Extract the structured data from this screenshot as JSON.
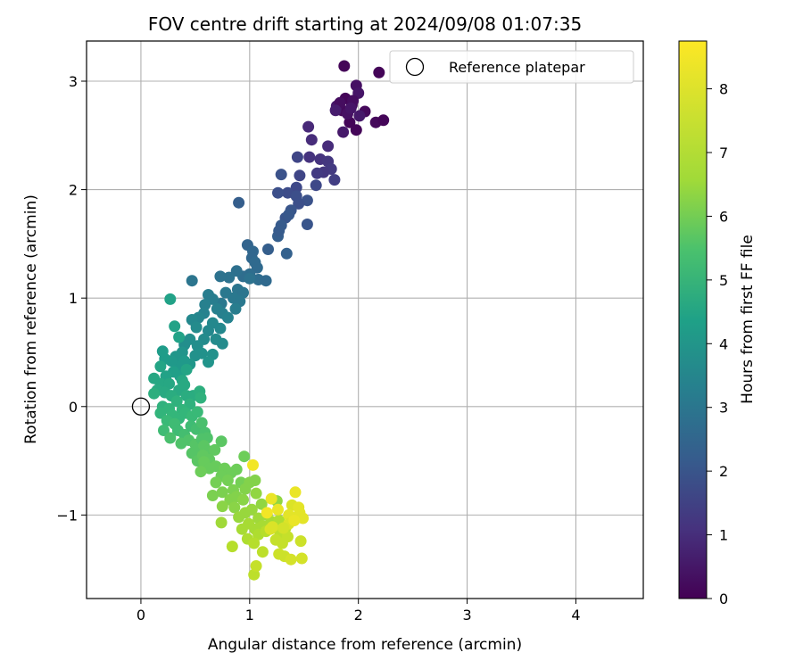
{
  "chart_data": {
    "type": "scatter",
    "title": "FOV centre drift starting at 2024/09/08 01:07:35",
    "xlabel": "Angular distance from reference (arcmin)",
    "ylabel": "Rotation from reference (arcmin)",
    "xlim": [
      -0.5,
      4.62
    ],
    "ylim": [
      -1.77,
      3.37
    ],
    "xticks": [
      0,
      1,
      2,
      3,
      4
    ],
    "yticks": [
      -1,
      0,
      1,
      2,
      3
    ],
    "xtick_labels": [
      "0",
      "1",
      "2",
      "3",
      "4"
    ],
    "ytick_labels": [
      "−1",
      "0",
      "1",
      "2",
      "3"
    ],
    "grid": true,
    "legend": {
      "placement": "top-right",
      "entries": [
        "Reference platepar"
      ]
    },
    "reference_point": {
      "x": 0,
      "y": 0,
      "label": "Reference platepar"
    },
    "colorbar": {
      "label": "Hours from first FF file",
      "min": 0,
      "max": 8.75,
      "ticks": [
        0,
        1,
        2,
        3,
        4,
        5,
        6,
        7,
        8
      ],
      "tick_labels": [
        "0",
        "1",
        "2",
        "3",
        "4",
        "5",
        "6",
        "7",
        "8"
      ],
      "colormap": "viridis"
    },
    "points": [
      [
        1.87,
        3.14,
        0.1
      ],
      [
        2.19,
        3.08,
        0.1
      ],
      [
        1.92,
        2.62,
        0.1
      ],
      [
        1.98,
        2.55,
        0.1
      ],
      [
        2.06,
        2.72,
        0.2
      ],
      [
        2.16,
        2.62,
        0.2
      ],
      [
        2.23,
        2.64,
        0.1
      ],
      [
        1.88,
        2.84,
        0.1
      ],
      [
        1.94,
        2.78,
        0.2
      ],
      [
        1.85,
        2.73,
        0.2
      ],
      [
        1.98,
        2.96,
        0.4
      ],
      [
        2.0,
        2.89,
        0.5
      ],
      [
        1.8,
        2.77,
        0.6
      ],
      [
        1.9,
        2.7,
        0.4
      ],
      [
        1.83,
        2.8,
        0.3
      ],
      [
        1.95,
        2.82,
        0.3
      ],
      [
        1.86,
        2.53,
        0.6
      ],
      [
        1.93,
        2.75,
        0.5
      ],
      [
        1.79,
        2.73,
        0.7
      ],
      [
        2.01,
        2.68,
        0.6
      ],
      [
        1.54,
        2.58,
        1.0
      ],
      [
        1.57,
        2.46,
        1.1
      ],
      [
        1.72,
        2.4,
        1.1
      ],
      [
        1.65,
        2.28,
        1.3
      ],
      [
        1.55,
        2.3,
        1.3
      ],
      [
        1.72,
        2.26,
        1.4
      ],
      [
        1.75,
        2.19,
        1.5
      ],
      [
        1.68,
        2.16,
        1.4
      ],
      [
        1.62,
        2.15,
        1.5
      ],
      [
        1.78,
        2.09,
        1.6
      ],
      [
        1.44,
        2.3,
        1.8
      ],
      [
        1.46,
        2.13,
        1.8
      ],
      [
        1.61,
        2.04,
        1.9
      ],
      [
        1.43,
        2.02,
        1.9
      ],
      [
        1.35,
        1.97,
        2.0
      ],
      [
        1.26,
        1.97,
        2.1
      ],
      [
        1.43,
        1.94,
        2.1
      ],
      [
        1.53,
        1.9,
        2.2
      ],
      [
        1.45,
        1.87,
        2.1
      ],
      [
        1.29,
        2.14,
        2.2
      ],
      [
        1.38,
        1.81,
        2.3
      ],
      [
        1.33,
        1.74,
        2.3
      ],
      [
        1.36,
        1.77,
        2.4
      ],
      [
        1.29,
        1.67,
        2.5
      ],
      [
        1.26,
        1.57,
        2.6
      ],
      [
        1.17,
        1.45,
        2.6
      ],
      [
        1.53,
        1.68,
        2.3
      ],
      [
        1.34,
        1.41,
        2.7
      ],
      [
        0.9,
        1.88,
        2.6
      ],
      [
        1.27,
        1.62,
        2.5
      ],
      [
        0.98,
        1.49,
        2.8
      ],
      [
        1.03,
        1.43,
        2.9
      ],
      [
        1.02,
        1.37,
        2.9
      ],
      [
        1.05,
        1.33,
        3.0
      ],
      [
        1.07,
        1.28,
        3.0
      ],
      [
        1.0,
        1.22,
        3.1
      ],
      [
        0.94,
        1.2,
        3.1
      ],
      [
        1.08,
        1.17,
        3.1
      ],
      [
        1.15,
        1.16,
        3.0
      ],
      [
        0.88,
        1.25,
        3.2
      ],
      [
        0.81,
        1.19,
        3.3
      ],
      [
        1.0,
        1.18,
        3.3
      ],
      [
        0.89,
        1.08,
        3.4
      ],
      [
        0.94,
        1.05,
        3.4
      ],
      [
        0.78,
        1.05,
        3.5
      ],
      [
        0.85,
        1.0,
        3.5
      ],
      [
        0.74,
        0.95,
        3.5
      ],
      [
        0.91,
        0.97,
        3.5
      ],
      [
        0.47,
        1.16,
        3.4
      ],
      [
        0.73,
        1.2,
        3.3
      ],
      [
        0.62,
        1.03,
        3.7
      ],
      [
        0.66,
        0.99,
        3.7
      ],
      [
        0.59,
        0.94,
        3.8
      ],
      [
        0.7,
        0.9,
        3.8
      ],
      [
        0.75,
        0.86,
        3.8
      ],
      [
        0.87,
        0.9,
        3.7
      ],
      [
        0.8,
        0.82,
        3.9
      ],
      [
        0.58,
        0.86,
        3.9
      ],
      [
        0.53,
        0.82,
        4.0
      ],
      [
        0.66,
        0.77,
        4.1
      ],
      [
        0.47,
        0.8,
        4.1
      ],
      [
        0.62,
        0.7,
        4.1
      ],
      [
        0.73,
        0.72,
        4.1
      ],
      [
        0.51,
        0.73,
        4.2
      ],
      [
        0.58,
        0.62,
        4.2
      ],
      [
        0.69,
        0.62,
        4.2
      ],
      [
        0.75,
        0.58,
        4.2
      ],
      [
        0.45,
        0.62,
        4.3
      ],
      [
        0.4,
        0.57,
        4.3
      ],
      [
        0.52,
        0.56,
        4.3
      ],
      [
        0.56,
        0.49,
        4.4
      ],
      [
        0.66,
        0.48,
        4.4
      ],
      [
        0.5,
        0.47,
        4.4
      ],
      [
        0.62,
        0.41,
        4.5
      ],
      [
        0.38,
        0.5,
        4.5
      ],
      [
        0.32,
        0.46,
        4.6
      ],
      [
        0.45,
        0.39,
        4.6
      ],
      [
        0.4,
        0.42,
        4.7
      ],
      [
        0.34,
        0.37,
        4.7
      ],
      [
        0.28,
        0.42,
        4.7
      ],
      [
        0.22,
        0.44,
        4.8
      ],
      [
        0.2,
        0.51,
        4.8
      ],
      [
        0.3,
        0.32,
        4.9
      ],
      [
        0.36,
        0.28,
        4.9
      ],
      [
        0.23,
        0.28,
        5.0
      ],
      [
        0.27,
        0.99,
        5.0
      ],
      [
        0.31,
        0.74,
        5.0
      ],
      [
        0.35,
        0.64,
        5.0
      ],
      [
        0.18,
        0.37,
        5.1
      ],
      [
        0.42,
        0.34,
        5.1
      ],
      [
        0.12,
        0.26,
        5.2
      ],
      [
        0.18,
        0.21,
        5.2
      ],
      [
        0.26,
        0.21,
        5.2
      ],
      [
        0.38,
        0.24,
        5.2
      ],
      [
        0.15,
        0.15,
        5.3
      ],
      [
        0.22,
        0.13,
        5.3
      ],
      [
        0.35,
        0.15,
        5.3
      ],
      [
        0.4,
        0.2,
        5.3
      ],
      [
        0.28,
        0.1,
        5.4
      ],
      [
        0.42,
        0.1,
        5.4
      ],
      [
        0.12,
        0.12,
        5.5
      ],
      [
        0.48,
        0.1,
        5.4
      ],
      [
        0.54,
        0.14,
        5.5
      ],
      [
        0.55,
        0.08,
        5.6
      ],
      [
        0.33,
        0.05,
        5.6
      ],
      [
        0.45,
        0.02,
        5.6
      ],
      [
        0.2,
        0.0,
        5.6
      ],
      [
        0.26,
        -0.02,
        5.7
      ],
      [
        0.38,
        -0.03,
        5.7
      ],
      [
        0.18,
        -0.06,
        5.7
      ],
      [
        0.29,
        -0.08,
        5.8
      ],
      [
        0.35,
        -0.11,
        5.8
      ],
      [
        0.41,
        -0.06,
        5.8
      ],
      [
        0.47,
        -0.09,
        5.9
      ],
      [
        0.52,
        -0.05,
        5.9
      ],
      [
        0.24,
        -0.13,
        5.9
      ],
      [
        0.31,
        -0.16,
        6.0
      ],
      [
        0.21,
        -0.22,
        6.0
      ],
      [
        0.34,
        -0.22,
        6.0
      ],
      [
        0.4,
        -0.26,
        6.1
      ],
      [
        0.46,
        -0.18,
        6.0
      ],
      [
        0.51,
        -0.21,
        6.1
      ],
      [
        0.56,
        -0.15,
        6.2
      ],
      [
        0.59,
        -0.24,
        6.2
      ],
      [
        0.27,
        -0.29,
        6.2
      ],
      [
        0.37,
        -0.34,
        6.3
      ],
      [
        0.44,
        -0.31,
        6.3
      ],
      [
        0.5,
        -0.35,
        6.4
      ],
      [
        0.56,
        -0.3,
        6.3
      ],
      [
        0.61,
        -0.29,
        6.3
      ],
      [
        0.47,
        -0.43,
        6.4
      ],
      [
        0.53,
        -0.4,
        6.4
      ],
      [
        0.58,
        -0.36,
        6.5
      ],
      [
        0.62,
        -0.41,
        6.5
      ],
      [
        0.68,
        -0.4,
        6.6
      ],
      [
        0.74,
        -0.32,
        6.5
      ],
      [
        0.52,
        -0.5,
        6.5
      ],
      [
        0.57,
        -0.45,
        6.6
      ],
      [
        0.63,
        -0.49,
        6.6
      ],
      [
        0.69,
        -0.55,
        6.7
      ],
      [
        0.58,
        -0.51,
        6.7
      ],
      [
        0.63,
        -0.57,
        6.7
      ],
      [
        0.77,
        -0.57,
        6.8
      ],
      [
        0.83,
        -0.61,
        6.8
      ],
      [
        0.88,
        -0.58,
        6.8
      ],
      [
        0.74,
        -0.64,
        6.8
      ],
      [
        0.55,
        -0.6,
        6.8
      ],
      [
        0.69,
        -0.7,
        6.9
      ],
      [
        0.8,
        -0.68,
        6.9
      ],
      [
        0.92,
        -0.7,
        6.9
      ],
      [
        0.95,
        -0.46,
        6.8
      ],
      [
        0.66,
        -0.82,
        7.0
      ],
      [
        0.75,
        -0.79,
        7.0
      ],
      [
        0.85,
        -0.77,
        7.0
      ],
      [
        0.96,
        -0.76,
        7.1
      ],
      [
        1.0,
        -0.7,
        7.1
      ],
      [
        0.82,
        -0.86,
        7.1
      ],
      [
        0.88,
        -0.83,
        7.1
      ],
      [
        0.94,
        -0.86,
        7.2
      ],
      [
        1.05,
        -0.68,
        7.1
      ],
      [
        0.75,
        -0.92,
        7.2
      ],
      [
        0.86,
        -0.93,
        7.2
      ],
      [
        1.06,
        -0.8,
        7.3
      ],
      [
        1.11,
        -0.9,
        7.3
      ],
      [
        1.25,
        -0.87,
        7.3
      ],
      [
        0.96,
        -0.98,
        7.4
      ],
      [
        1.02,
        -0.95,
        7.4
      ],
      [
        0.9,
        -1.02,
        7.4
      ],
      [
        1.08,
        -1.03,
        7.5
      ],
      [
        1.16,
        -1.0,
        7.5
      ],
      [
        0.74,
        -1.07,
        7.5
      ],
      [
        0.99,
        -1.08,
        7.6
      ],
      [
        0.93,
        -1.13,
        7.6
      ],
      [
        1.05,
        -1.13,
        7.6
      ],
      [
        1.12,
        -1.1,
        7.6
      ],
      [
        1.2,
        -1.06,
        7.6
      ],
      [
        1.27,
        -1.05,
        7.7
      ],
      [
        0.98,
        -1.22,
        7.7
      ],
      [
        1.08,
        -1.18,
        7.7
      ],
      [
        1.15,
        -1.15,
        7.8
      ],
      [
        0.84,
        -1.29,
        7.8
      ],
      [
        1.04,
        -1.26,
        7.8
      ],
      [
        1.12,
        -1.34,
        7.9
      ],
      [
        1.28,
        -1.17,
        7.9
      ],
      [
        1.33,
        -1.12,
        7.9
      ],
      [
        1.35,
        -1.2,
        8.0
      ],
      [
        1.24,
        -1.23,
        8.0
      ],
      [
        1.3,
        -1.26,
        8.0
      ],
      [
        1.27,
        -1.36,
        8.1
      ],
      [
        1.32,
        -1.38,
        8.1
      ],
      [
        1.04,
        -1.55,
        7.9
      ],
      [
        1.06,
        -1.47,
        8.0
      ],
      [
        1.38,
        -1.41,
        8.2
      ],
      [
        1.48,
        -1.4,
        8.2
      ],
      [
        1.47,
        -1.24,
        8.1
      ],
      [
        1.39,
        -0.91,
        8.3
      ],
      [
        1.45,
        -0.93,
        8.4
      ],
      [
        1.46,
        -0.98,
        8.4
      ],
      [
        1.49,
        -1.03,
        8.4
      ],
      [
        1.42,
        -0.79,
        8.5
      ],
      [
        1.36,
        -1.0,
        8.4
      ],
      [
        1.36,
        -1.08,
        8.3
      ],
      [
        1.2,
        -0.85,
        8.5
      ],
      [
        1.21,
        -1.11,
        8.3
      ],
      [
        1.26,
        -0.95,
        8.5
      ],
      [
        1.03,
        -0.54,
        8.6
      ],
      [
        1.16,
        -0.98,
        8.6
      ],
      [
        1.19,
        -1.13,
        8.3
      ],
      [
        1.31,
        -1.12,
        8.2
      ],
      [
        1.41,
        -1.05,
        8.5
      ]
    ]
  }
}
